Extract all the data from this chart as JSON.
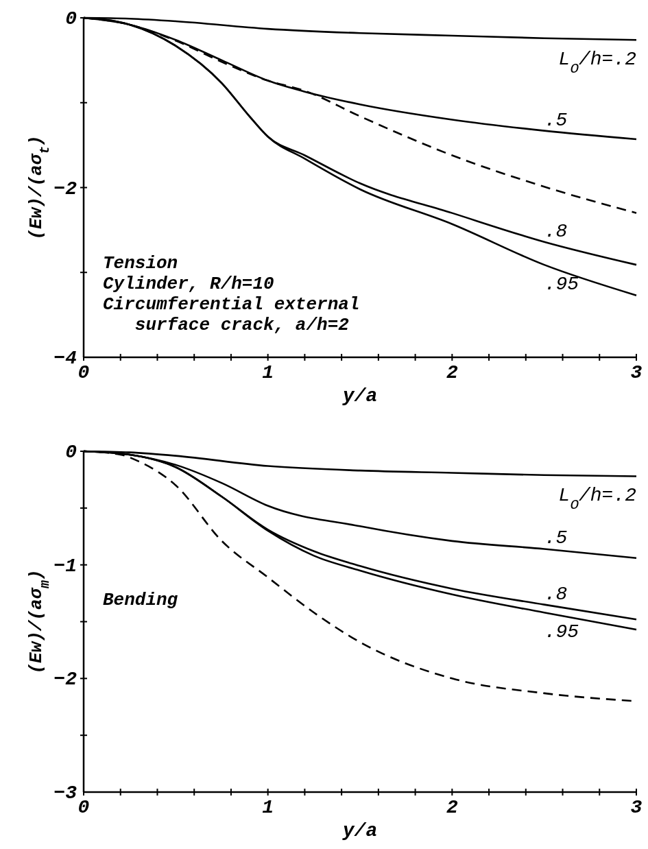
{
  "chart_data": [
    {
      "type": "line",
      "xlabel": "y/a",
      "ylabel": "(Ew)/(aσ$_{t}$)",
      "xlim": [
        0,
        3
      ],
      "ylim": [
        -4,
        0
      ],
      "xticks": [
        0,
        {
          "value": 0.2,
          "label": null
        },
        {
          "value": 0.4,
          "label": null
        },
        {
          "value": 0.6,
          "label": null
        },
        {
          "value": 0.8,
          "label": null
        },
        1,
        {
          "value": 1.2,
          "label": null
        },
        {
          "value": 1.4,
          "label": null
        },
        {
          "value": 1.6,
          "label": null
        },
        {
          "value": 1.8,
          "label": null
        },
        2,
        {
          "value": 2.2,
          "label": null
        },
        {
          "value": 2.4,
          "label": null
        },
        {
          "value": 2.6,
          "label": null
        },
        {
          "value": 2.8,
          "label": null
        },
        3
      ],
      "yticks": [
        0,
        {
          "value": -1,
          "label": null
        },
        -2,
        {
          "value": -3,
          "label": null
        },
        -4
      ],
      "grid": false,
      "marker": "none",
      "series": [
        {
          "name": "L$_{O}$/h=.2",
          "color": "#000000",
          "line_style": "solid",
          "x": [
            0,
            0.25,
            0.5,
            1,
            1.5,
            2,
            2.5,
            3
          ],
          "values": [
            0,
            -0.01,
            -0.04,
            -0.13,
            -0.18,
            -0.21,
            -0.24,
            -0.26
          ]
        },
        {
          "name": ".5",
          "color": "#000000",
          "line_style": "solid",
          "x": [
            0,
            0.25,
            0.5,
            0.75,
            1,
            1.2,
            1.5,
            2,
            2.5,
            3
          ],
          "values": [
            0,
            -0.08,
            -0.26,
            -0.5,
            -0.74,
            -0.87,
            -1.02,
            -1.2,
            -1.33,
            -1.43
          ]
        },
        {
          "color": "#000000",
          "line_style": "dashed",
          "x": [
            0,
            0.25,
            0.5,
            0.75,
            1,
            1.2,
            1.5,
            2,
            2.5,
            3
          ],
          "values": [
            0,
            -0.08,
            -0.27,
            -0.52,
            -0.74,
            -0.86,
            -1.16,
            -1.62,
            -1.99,
            -2.3
          ]
        },
        {
          "name": ".8",
          "color": "#000000",
          "line_style": "solid",
          "x": [
            0,
            0.25,
            0.5,
            0.75,
            0.9,
            1,
            1.2,
            1.5,
            2,
            2.5,
            3
          ],
          "values": [
            0,
            -0.08,
            -0.33,
            -0.77,
            -1.16,
            -1.4,
            -1.62,
            -1.95,
            -2.3,
            -2.64,
            -2.91
          ]
        },
        {
          "name": ".95",
          "color": "#000000",
          "line_style": "solid",
          "x": [
            0,
            0.25,
            0.5,
            0.75,
            0.9,
            1,
            1.2,
            1.5,
            2,
            2.5,
            3
          ],
          "values": [
            0,
            -0.08,
            -0.33,
            -0.77,
            -1.16,
            -1.4,
            -1.66,
            -2.02,
            -2.43,
            -2.91,
            -3.27
          ]
        }
      ],
      "annotations": [
        "Tension",
        "Cylinder, R/h=10",
        "Circumferential external",
        "   surface crack, a/h=2"
      ]
    },
    {
      "type": "line",
      "xlabel": "y/a",
      "ylabel": "(Ew)/(aσ$_{m}$)",
      "xlim": [
        0,
        3
      ],
      "ylim": [
        -3,
        0
      ],
      "xticks": [
        0,
        {
          "value": 0.2,
          "label": null
        },
        {
          "value": 0.4,
          "label": null
        },
        {
          "value": 0.6,
          "label": null
        },
        {
          "value": 0.8,
          "label": null
        },
        1,
        {
          "value": 1.2,
          "label": null
        },
        {
          "value": 1.4,
          "label": null
        },
        {
          "value": 1.6,
          "label": null
        },
        {
          "value": 1.8,
          "label": null
        },
        2,
        {
          "value": 2.2,
          "label": null
        },
        {
          "value": 2.4,
          "label": null
        },
        {
          "value": 2.6,
          "label": null
        },
        {
          "value": 2.8,
          "label": null
        },
        3
      ],
      "yticks": [
        0,
        {
          "value": -0.5,
          "label": null
        },
        -1,
        {
          "value": -1.5,
          "label": null
        },
        -2,
        {
          "value": -2.5,
          "label": null
        },
        -3
      ],
      "grid": false,
      "marker": "none",
      "series": [
        {
          "name": "L$_{O}$/h=.2",
          "color": "#000000",
          "line_style": "solid",
          "x": [
            0,
            0.25,
            0.5,
            1,
            1.5,
            2,
            2.5,
            3
          ],
          "values": [
            0,
            -0.01,
            -0.04,
            -0.13,
            -0.17,
            -0.19,
            -0.21,
            -0.22
          ]
        },
        {
          "name": ".5",
          "color": "#000000",
          "line_style": "solid",
          "x": [
            0,
            0.25,
            0.5,
            0.75,
            1,
            1.5,
            2,
            2.5,
            3
          ],
          "values": [
            0,
            -0.03,
            -0.12,
            -0.28,
            -0.48,
            -0.66,
            -0.79,
            -0.86,
            -0.94
          ]
        },
        {
          "name": ".8",
          "color": "#000000",
          "line_style": "solid",
          "x": [
            0,
            0.25,
            0.5,
            0.75,
            1,
            1.25,
            1.5,
            2,
            2.5,
            3
          ],
          "values": [
            0,
            -0.03,
            -0.14,
            -0.4,
            -0.69,
            -0.88,
            -1.01,
            -1.21,
            -1.35,
            -1.48
          ]
        },
        {
          "name": ".95",
          "color": "#000000",
          "line_style": "solid",
          "x": [
            0,
            0.25,
            0.5,
            0.75,
            1,
            1.25,
            1.5,
            2,
            2.5,
            3
          ],
          "values": [
            0,
            -0.03,
            -0.14,
            -0.4,
            -0.7,
            -0.92,
            -1.05,
            -1.26,
            -1.42,
            -1.57
          ]
        },
        {
          "color": "#000000",
          "line_style": "dashed",
          "x": [
            0,
            0.2,
            0.3,
            0.5,
            0.75,
            1,
            1.25,
            1.5,
            2,
            2.5,
            3
          ],
          "values": [
            0,
            -0.03,
            -0.09,
            -0.3,
            -0.79,
            -1.11,
            -1.42,
            -1.68,
            -2.0,
            -2.13,
            -2.2
          ]
        }
      ],
      "annotations": [
        "Bending"
      ]
    }
  ]
}
